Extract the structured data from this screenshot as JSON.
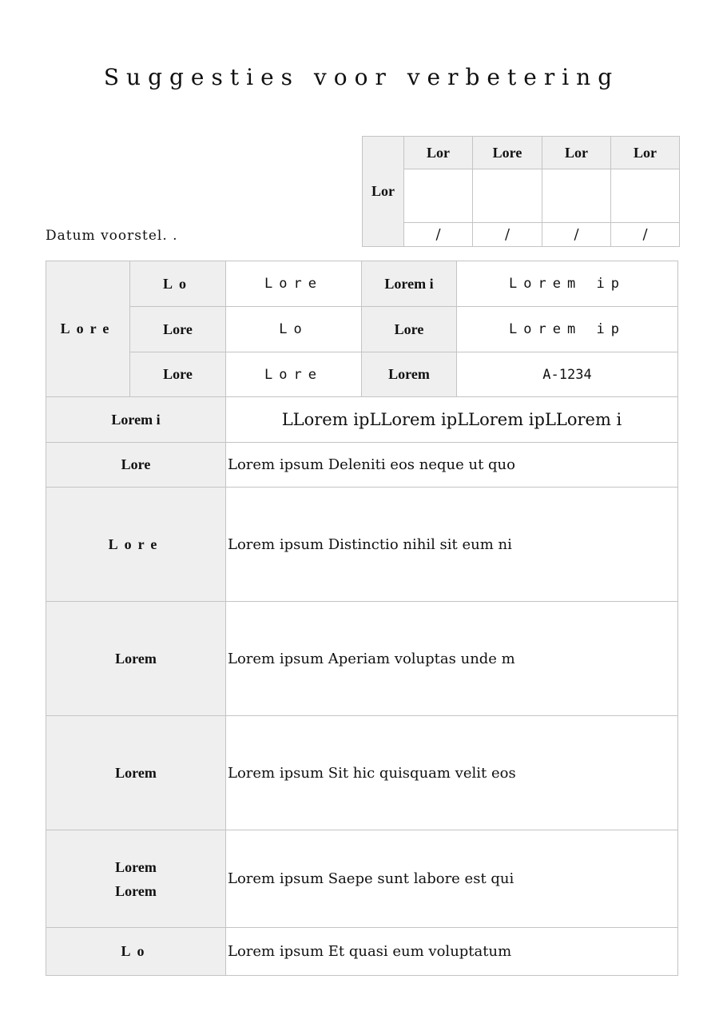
{
  "title": "Suggesties voor verbetering",
  "date_label": "Datum voorstel. .",
  "approval": {
    "row_label": "Lor",
    "headers": [
      "Lor",
      "Lore",
      "Lor",
      "Lor"
    ],
    "dates": [
      "/",
      "/",
      "/",
      " /"
    ]
  },
  "info": {
    "group_label": "Lore",
    "rows": [
      {
        "label": "Lo",
        "value": "Lore",
        "label2": "Lorem i",
        "value2": "Lorem ip"
      },
      {
        "label": "Lore",
        "value": "Lo",
        "label2": "Lore",
        "value2": "Lorem ip"
      },
      {
        "label": "Lore",
        "value": "Lore",
        "label2": "Lorem",
        "value2": "A-1234"
      }
    ]
  },
  "fields": [
    {
      "label": "Lorem i",
      "value": "LLorem ipLLorem ipLLorem ipLLorem i"
    },
    {
      "label": "Lore",
      "value": "Lorem ipsum Deleniti eos neque ut quo"
    },
    {
      "label": "Lore",
      "value": "Lorem ipsum Distinctio nihil sit eum ni"
    },
    {
      "label": "Lorem",
      "value": "Lorem ipsum Aperiam voluptas unde m"
    },
    {
      "label": "Lorem",
      "value": "Lorem ipsum Sit hic quisquam velit eos"
    },
    {
      "label": "Lorem",
      "label_line2": "Lorem",
      "value": "Lorem ipsum Saepe sunt labore est qui"
    },
    {
      "label": "Lo",
      "value": "Lorem ipsum Et quasi eum voluptatum"
    }
  ]
}
